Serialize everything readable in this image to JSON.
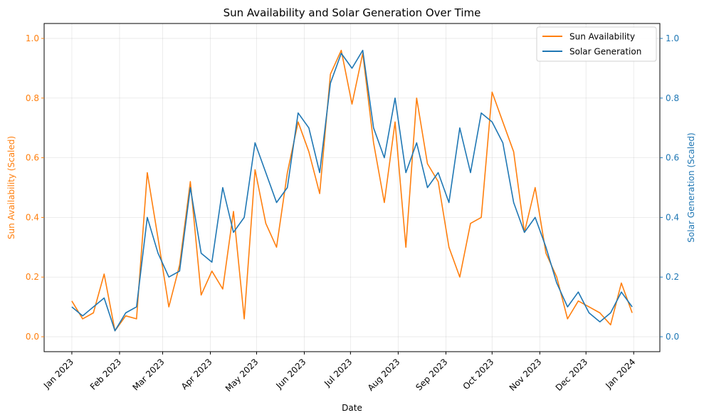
{
  "chart_data": {
    "type": "line",
    "title": "Sun Availability and Solar Generation Over Time",
    "xlabel": "Date",
    "ylabel_left": "Sun Availability (Scaled)",
    "ylabel_right": "Solar Generation (Scaled)",
    "x_ticks": [
      "Jan 2023",
      "Feb 2023",
      "Mar 2023",
      "Apr 2023",
      "May 2023",
      "Jun 2023",
      "Jul 2023",
      "Aug 2023",
      "Sep 2023",
      "Oct 2023",
      "Nov 2023",
      "Dec 2023",
      "Jan 2024"
    ],
    "y_ticks_left": [
      "0.0",
      "0.2",
      "0.4",
      "0.6",
      "0.8",
      "1.0"
    ],
    "y_ticks_right": [
      "0.0",
      "0.2",
      "0.4",
      "0.6",
      "0.8",
      "1.0"
    ],
    "xlim": [
      "2022-12-14",
      "2024-01-18"
    ],
    "ylim_left": [
      -0.05,
      1.05
    ],
    "ylim_right": [
      -0.05,
      1.05
    ],
    "grid": true,
    "legend_position": "top-right",
    "colors": {
      "sun": "#ff7f0e",
      "solar": "#1f77b4"
    },
    "series": [
      {
        "name": "Sun Availability",
        "axis": "left",
        "x": [
          "2023-01-01",
          "2023-01-08",
          "2023-01-15",
          "2023-01-22",
          "2023-01-29",
          "2023-02-05",
          "2023-02-12",
          "2023-02-19",
          "2023-02-26",
          "2023-03-05",
          "2023-03-12",
          "2023-03-19",
          "2023-03-26",
          "2023-04-02",
          "2023-04-09",
          "2023-04-16",
          "2023-04-23",
          "2023-04-30",
          "2023-05-07",
          "2023-05-14",
          "2023-05-21",
          "2023-05-28",
          "2023-06-04",
          "2023-06-11",
          "2023-06-18",
          "2023-06-25",
          "2023-07-02",
          "2023-07-09",
          "2023-07-16",
          "2023-07-23",
          "2023-07-30",
          "2023-08-06",
          "2023-08-13",
          "2023-08-20",
          "2023-08-27",
          "2023-09-03",
          "2023-09-10",
          "2023-09-17",
          "2023-09-24",
          "2023-10-01",
          "2023-10-08",
          "2023-10-15",
          "2023-10-22",
          "2023-10-29",
          "2023-11-05",
          "2023-11-12",
          "2023-11-19",
          "2023-11-26",
          "2023-12-03",
          "2023-12-10",
          "2023-12-17",
          "2023-12-24",
          "2023-12-31"
        ],
        "y": [
          0.12,
          0.06,
          0.08,
          0.21,
          0.02,
          0.07,
          0.06,
          0.55,
          0.33,
          0.1,
          0.24,
          0.52,
          0.14,
          0.22,
          0.16,
          0.42,
          0.06,
          0.56,
          0.38,
          0.3,
          0.55,
          0.72,
          0.62,
          0.48,
          0.88,
          0.96,
          0.78,
          0.95,
          0.65,
          0.45,
          0.72,
          0.3,
          0.8,
          0.58,
          0.52,
          0.3,
          0.2,
          0.38,
          0.4,
          0.82,
          0.72,
          0.62,
          0.35,
          0.5,
          0.28,
          0.2,
          0.06,
          0.12,
          0.1,
          0.08,
          0.04,
          0.18,
          0.08
        ]
      },
      {
        "name": "Solar Generation",
        "axis": "right",
        "x": [
          "2023-01-01",
          "2023-01-08",
          "2023-01-15",
          "2023-01-22",
          "2023-01-29",
          "2023-02-05",
          "2023-02-12",
          "2023-02-19",
          "2023-02-26",
          "2023-03-05",
          "2023-03-12",
          "2023-03-19",
          "2023-03-26",
          "2023-04-02",
          "2023-04-09",
          "2023-04-16",
          "2023-04-23",
          "2023-04-30",
          "2023-05-07",
          "2023-05-14",
          "2023-05-21",
          "2023-05-28",
          "2023-06-04",
          "2023-06-11",
          "2023-06-18",
          "2023-06-25",
          "2023-07-02",
          "2023-07-09",
          "2023-07-16",
          "2023-07-23",
          "2023-07-30",
          "2023-08-06",
          "2023-08-13",
          "2023-08-20",
          "2023-08-27",
          "2023-09-03",
          "2023-09-10",
          "2023-09-17",
          "2023-09-24",
          "2023-10-01",
          "2023-10-08",
          "2023-10-15",
          "2023-10-22",
          "2023-10-29",
          "2023-11-05",
          "2023-11-12",
          "2023-11-19",
          "2023-11-26",
          "2023-12-03",
          "2023-12-10",
          "2023-12-17",
          "2023-12-24",
          "2023-12-31"
        ],
        "y": [
          0.1,
          0.07,
          0.1,
          0.13,
          0.02,
          0.08,
          0.1,
          0.4,
          0.28,
          0.2,
          0.22,
          0.5,
          0.28,
          0.25,
          0.5,
          0.35,
          0.4,
          0.65,
          0.55,
          0.45,
          0.5,
          0.75,
          0.7,
          0.55,
          0.85,
          0.95,
          0.9,
          0.96,
          0.7,
          0.6,
          0.8,
          0.55,
          0.65,
          0.5,
          0.55,
          0.45,
          0.7,
          0.55,
          0.75,
          0.72,
          0.65,
          0.45,
          0.35,
          0.4,
          0.3,
          0.18,
          0.1,
          0.15,
          0.08,
          0.05,
          0.08,
          0.15,
          0.1
        ]
      }
    ]
  }
}
